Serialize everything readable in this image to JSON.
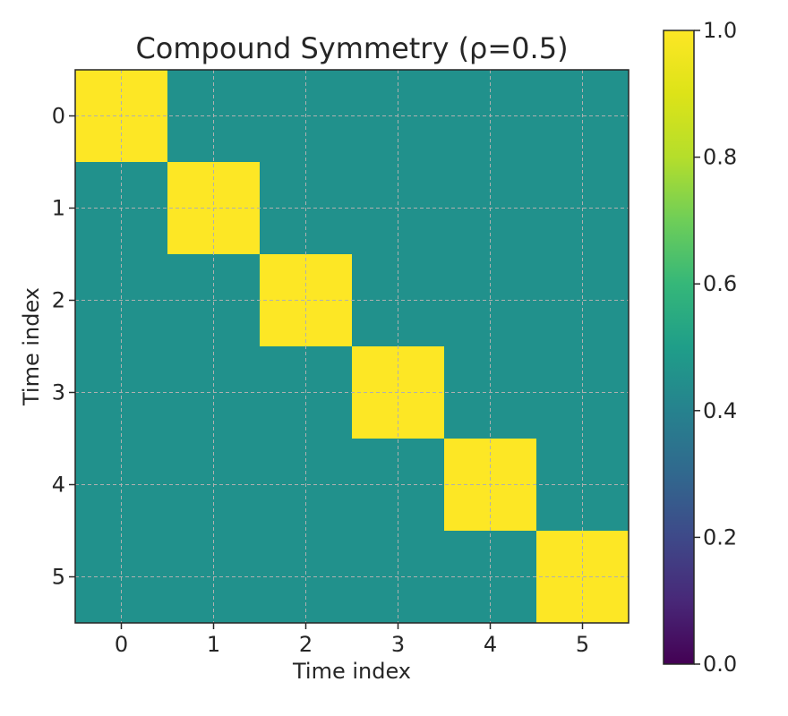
{
  "chart_data": {
    "type": "heatmap",
    "title": "Compound Symmetry (ρ=0.5)",
    "xlabel": "Time index",
    "ylabel": "Time index",
    "x_ticks": [
      "0",
      "1",
      "2",
      "3",
      "4",
      "5"
    ],
    "y_ticks": [
      "0",
      "1",
      "2",
      "3",
      "4",
      "5"
    ],
    "matrix": [
      [
        1.0,
        0.5,
        0.5,
        0.5,
        0.5,
        0.5
      ],
      [
        0.5,
        1.0,
        0.5,
        0.5,
        0.5,
        0.5
      ],
      [
        0.5,
        0.5,
        1.0,
        0.5,
        0.5,
        0.5
      ],
      [
        0.5,
        0.5,
        0.5,
        1.0,
        0.5,
        0.5
      ],
      [
        0.5,
        0.5,
        0.5,
        0.5,
        1.0,
        0.5
      ],
      [
        0.5,
        0.5,
        0.5,
        0.5,
        0.5,
        1.0
      ]
    ],
    "colormap": "viridis",
    "colors": {
      "high": "#fde725",
      "mid": "#21918c",
      "low": "#440154",
      "grid": "#b0b0b0"
    },
    "colorbar": {
      "range": [
        0.0,
        1.0
      ],
      "ticks": [
        "0.0",
        "0.2",
        "0.4",
        "0.6",
        "0.8",
        "1.0"
      ]
    },
    "grid": true
  }
}
